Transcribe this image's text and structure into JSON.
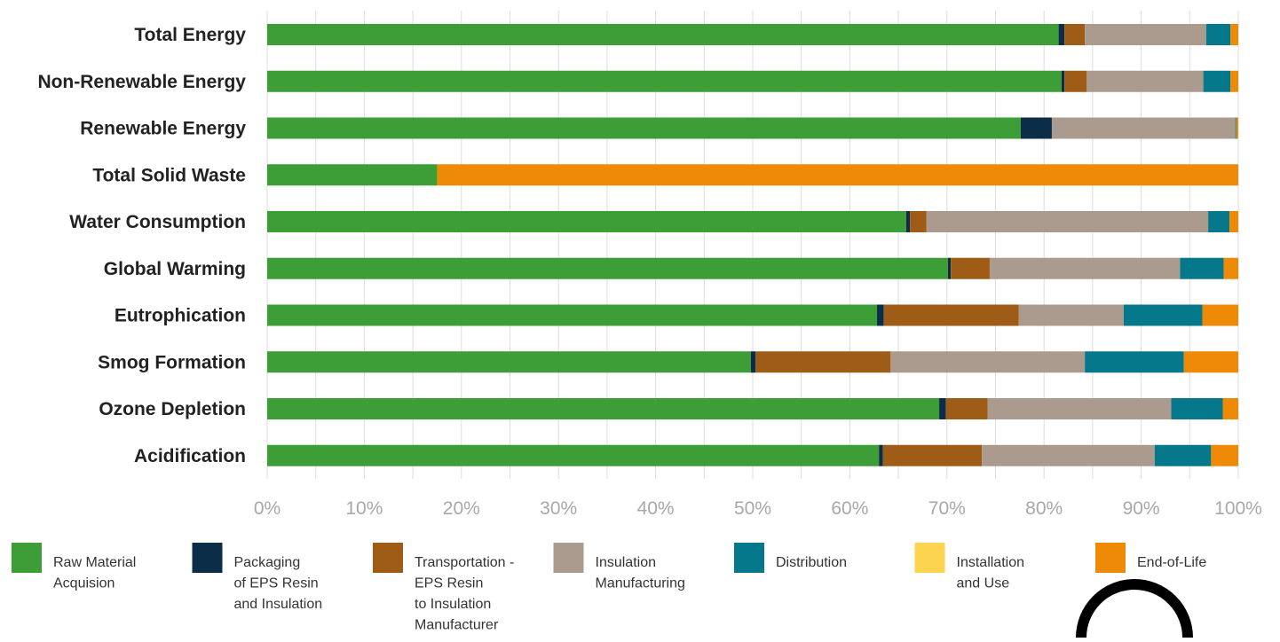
{
  "chart_data": {
    "type": "bar",
    "orientation": "horizontal",
    "stacked": true,
    "title": "",
    "xlabel": "",
    "ylabel": "",
    "xlim": [
      0,
      100
    ],
    "grid": true,
    "legend_position": "bottom",
    "x_ticks": [
      "0%",
      "10%",
      "20%",
      "30%",
      "40%",
      "50%",
      "60%",
      "70%",
      "80%",
      "90%",
      "100%"
    ],
    "categories": [
      "Total Energy",
      "Non-Renewable Energy",
      "Renewable Energy",
      "Total Solid Waste",
      "Water Consumption",
      "Global Warming",
      "Eutrophication",
      "Smog Formation",
      "Ozone Depletion",
      "Acidification"
    ],
    "series": [
      {
        "name": "Raw Material Acquision",
        "legend_lines": [
          "Raw Material",
          "Acquision"
        ],
        "color": "#3d9e37",
        "values": [
          81.5,
          81.8,
          77.6,
          17.5,
          65.8,
          70.1,
          62.8,
          49.8,
          69.2,
          63.0
        ]
      },
      {
        "name": "Packaging of EPS Resin and Insulation",
        "legend_lines": [
          "Packaging",
          "of EPS Resin",
          "and Insulation"
        ],
        "color": "#0c2d48",
        "values": [
          0.6,
          0.3,
          3.2,
          0.0,
          0.4,
          0.3,
          0.7,
          0.5,
          0.7,
          0.4
        ]
      },
      {
        "name": "Transportation - EPS Resin to Insulation Manufacturer",
        "legend_lines": [
          "Transportation -",
          "EPS Resin",
          "to Insulation",
          "Manufacturer"
        ],
        "color": "#9e5c16",
        "values": [
          2.1,
          2.3,
          0.0,
          0.0,
          1.7,
          4.0,
          13.9,
          13.9,
          4.3,
          10.2
        ]
      },
      {
        "name": "Insulation Manufacturing",
        "legend_lines": [
          "Insulation",
          "Manufacturing"
        ],
        "color": "#ab9b8e",
        "values": [
          12.5,
          12.0,
          18.9,
          0.0,
          29.0,
          19.6,
          10.8,
          20.0,
          18.9,
          17.8
        ]
      },
      {
        "name": "Distribution",
        "legend_lines": [
          "Distribution"
        ],
        "color": "#05798b",
        "values": [
          2.5,
          2.8,
          0.1,
          0.0,
          2.2,
          4.5,
          8.1,
          10.2,
          5.3,
          5.8
        ]
      },
      {
        "name": "Installation and Use",
        "legend_lines": [
          "Installation",
          "and Use"
        ],
        "color": "#fcd450",
        "values": [
          0.0,
          0.0,
          0.0,
          0.0,
          0.0,
          0.0,
          0.0,
          0.0,
          0.0,
          0.0
        ]
      },
      {
        "name": "End-of-Life",
        "legend_lines": [
          "End-of-Life"
        ],
        "color": "#ef8a06",
        "values": [
          0.8,
          0.8,
          0.2,
          82.5,
          0.9,
          1.5,
          3.7,
          5.6,
          1.6,
          2.8
        ]
      }
    ]
  }
}
